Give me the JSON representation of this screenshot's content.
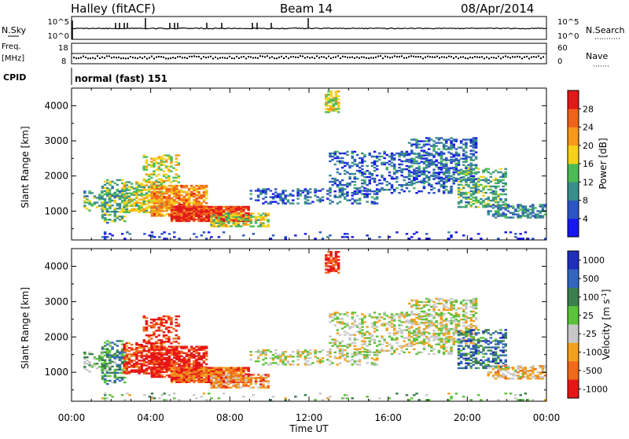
{
  "header": {
    "station": "Halley (fitACF)",
    "beam": "Beam 14",
    "date": "08/Apr/2014"
  },
  "strip_labels": {
    "nsky": "N.Sky",
    "nsky_ticks": [
      "10^5",
      "10^0"
    ],
    "nsearch": "N.Search",
    "nsearch_ticks": [
      "10^5",
      "10^0"
    ],
    "freq": "Freq.",
    "freq_unit": "[MHz]",
    "freq_ticks": [
      "18",
      "8"
    ],
    "nave": "Nave",
    "nave_ticks": [
      "60",
      "0"
    ],
    "cpid": "CPID",
    "cpid_value": "normal (fast) 151"
  },
  "chart_data": [
    {
      "type": "heatmap",
      "name": "power-panel",
      "ylabel": "Slant Range [km]",
      "ylim": [
        180,
        4500
      ],
      "yticks": [
        1000,
        2000,
        3000,
        4000
      ],
      "xlim": [
        0,
        24
      ],
      "colorbar": {
        "label": "Power [dB]",
        "bounds": [
          0,
          4,
          8,
          12,
          16,
          20,
          24,
          28,
          32
        ],
        "tick_labels": [
          "4",
          "8",
          "12",
          "16",
          "20",
          "24",
          "28"
        ],
        "colors": [
          "#1717f0",
          "#2c56c2",
          "#3b8e8c",
          "#4dbb57",
          "#f5d219",
          "#f59a1b",
          "#f0621e",
          "#e01a1a"
        ]
      }
    },
    {
      "type": "heatmap",
      "name": "velocity-panel",
      "ylabel": "Slant Range [km]",
      "ylim": [
        180,
        4500
      ],
      "yticks": [
        1000,
        2000,
        3000,
        4000
      ],
      "xlim": [
        0,
        24
      ],
      "xlabel": "Time UT",
      "xtick_labels": [
        "00:00",
        "04:00",
        "08:00",
        "12:00",
        "16:00",
        "20:00",
        "00:00"
      ],
      "colorbar": {
        "label": "Velocity [m s",
        "label_sup": "-1",
        "label_close": "]",
        "tick_labels": [
          "1000",
          "500",
          "100",
          "25",
          "-25",
          "-100",
          "-500",
          "-1000"
        ],
        "colors": [
          "#1f2fb8",
          "#3366bb",
          "#3b7f4d",
          "#5cc23c",
          "#c8c8c8",
          "#f0a21e",
          "#f06a1e",
          "#e61616"
        ]
      }
    }
  ]
}
